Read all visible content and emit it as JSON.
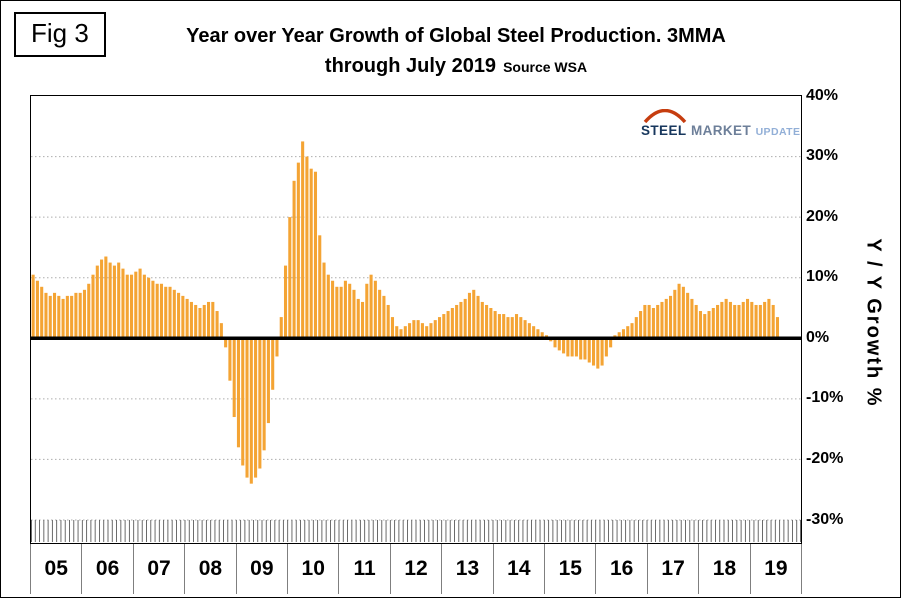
{
  "figure": {
    "label": "Fig 3"
  },
  "title": {
    "line1": "Year over Year Growth of Global Steel Production. 3MMA",
    "line2": "through July 2019",
    "source": "Source WSA"
  },
  "logo": {
    "word1": "STEEL",
    "word2": "MARKET",
    "word3": "UPDATE",
    "arc_color": "#c63d0f"
  },
  "y_axis": {
    "label": "Y / Y Growth %",
    "tick_labels": [
      "40%",
      "30%",
      "20%",
      "10%",
      "0%",
      "-10%",
      "-20%",
      "-30%"
    ]
  },
  "chart_data": {
    "type": "bar",
    "title": "Year over Year Growth of Global Steel Production. 3MMA through July 2019",
    "source": "Source WSA",
    "ylabel": "Y / Y Growth %",
    "ylim": [
      -30,
      40
    ],
    "ytick_step": 10,
    "grid": "horizontal-dotted",
    "bar_color": "#f4a434",
    "zero_line_color": "#000000",
    "x_start": "2005-01",
    "x_end": "2019-07",
    "years": [
      "05",
      "06",
      "07",
      "08",
      "09",
      "10",
      "11",
      "12",
      "13",
      "14",
      "15",
      "16",
      "17",
      "18",
      "19"
    ],
    "values_monthly": [
      10.5,
      9.5,
      8.5,
      7.5,
      7,
      7.5,
      7,
      6.5,
      7,
      7,
      7.5,
      7.5,
      8,
      9,
      10.5,
      12,
      13,
      13.5,
      12.5,
      12,
      12.5,
      11.5,
      10.5,
      10.5,
      11,
      11.5,
      10.5,
      10,
      9.5,
      9,
      9,
      8.5,
      8.5,
      8,
      7.5,
      7,
      6.5,
      6,
      5.5,
      5,
      5.5,
      6,
      6,
      4.5,
      2.5,
      -1.5,
      -7,
      -13,
      -18,
      -21,
      -23,
      -24,
      -23,
      -21.5,
      -18.5,
      -14,
      -8.5,
      -3,
      3.5,
      12,
      20,
      26,
      29,
      32.5,
      30,
      28,
      27.5,
      17,
      12.5,
      10.5,
      9.5,
      8.5,
      8.5,
      9.5,
      9,
      8,
      6.5,
      6,
      9,
      10.5,
      9.5,
      8,
      7,
      5.5,
      3.5,
      2,
      1.5,
      2,
      2.5,
      3,
      3,
      2.5,
      2,
      2.5,
      3,
      3.5,
      4,
      4.5,
      5,
      5.5,
      6,
      6.5,
      7.5,
      8,
      7,
      6,
      5.5,
      5,
      4.5,
      4,
      4,
      3.5,
      3.5,
      4,
      3.5,
      3,
      2.5,
      2,
      1.5,
      1,
      0.5,
      -0.5,
      -1.5,
      -2,
      -2.5,
      -3,
      -3,
      -3,
      -3.5,
      -3.5,
      -4,
      -4.5,
      -5,
      -4.5,
      -3,
      -1.5,
      0.5,
      1,
      1.5,
      2,
      2.5,
      3.5,
      4.5,
      5.5,
      5.5,
      5,
      5.5,
      6,
      6.5,
      7,
      8,
      9,
      8.5,
      7.5,
      6.5,
      5.5,
      4.5,
      4,
      4.5,
      5,
      5.5,
      6,
      6.5,
      6,
      5.5,
      5.5,
      6,
      6.5,
      6,
      5.5,
      5.5,
      6,
      6.5,
      5.5,
      3.5
    ]
  }
}
